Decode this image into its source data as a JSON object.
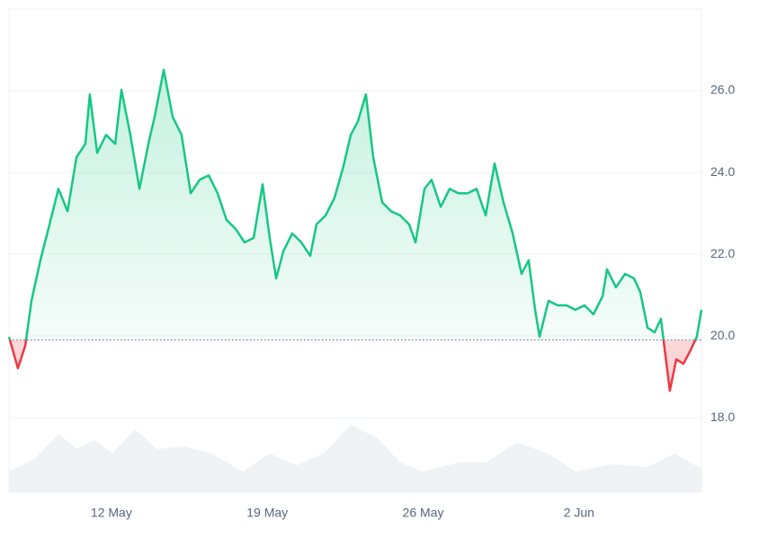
{
  "chart_data": {
    "type": "line",
    "x": [
      7.4,
      7.8,
      8.13,
      8.41,
      8.81,
      9.22,
      9.62,
      10.03,
      10.43,
      10.83,
      11.03,
      11.36,
      11.76,
      12.17,
      12.45,
      12.85,
      13.26,
      13.66,
      13.94,
      14.35,
      14.75,
      15.15,
      15.56,
      15.96,
      16.37,
      16.77,
      17.17,
      17.58,
      17.98,
      18.39,
      18.79,
      19.11,
      19.4,
      19.72,
      20.12,
      20.53,
      20.93,
      21.21,
      21.62,
      22.02,
      22.42,
      22.75,
      23.07,
      23.43,
      23.76,
      24.16,
      24.56,
      24.97,
      25.37,
      25.66,
      26.06,
      26.38,
      26.79,
      27.19,
      27.59,
      28.0,
      28.4,
      28.81,
      29.21,
      29.61,
      30.02,
      30.42,
      30.74,
      31.03,
      31.23,
      31.63,
      32.04,
      32.44,
      32.84,
      33.25,
      33.65,
      34.06,
      34.26,
      34.66,
      35.07,
      35.47,
      35.75,
      36.08,
      36.4,
      36.68,
      36.88,
      37.08,
      37.37,
      37.69,
      38.01,
      38.29,
      38.5
    ],
    "series": [
      {
        "color": "#16c784",
        "negative_color": "#ea3943",
        "values": [
          19.98,
          19.21,
          19.76,
          20.86,
          21.85,
          22.73,
          23.6,
          23.05,
          24.37,
          24.7,
          25.91,
          24.48,
          24.92,
          24.7,
          26.02,
          24.92,
          23.6,
          24.7,
          25.36,
          26.51,
          25.36,
          24.92,
          23.49,
          23.82,
          23.93,
          23.49,
          22.84,
          22.62,
          22.29,
          22.4,
          23.71,
          22.4,
          21.41,
          22.07,
          22.51,
          22.29,
          21.96,
          22.73,
          22.95,
          23.38,
          24.15,
          24.92,
          25.25,
          25.91,
          24.37,
          23.27,
          23.05,
          22.95,
          22.73,
          22.29,
          23.6,
          23.82,
          23.16,
          23.6,
          23.49,
          23.49,
          23.6,
          22.95,
          24.22,
          23.27,
          22.51,
          21.52,
          21.85,
          20.64,
          19.98,
          20.86,
          20.75,
          20.75,
          20.64,
          20.75,
          20.53,
          20.97,
          21.63,
          21.19,
          21.52,
          21.41,
          21.08,
          20.2,
          20.09,
          20.42,
          19.54,
          18.66,
          19.43,
          19.32,
          19.65,
          19.98,
          20.64
        ]
      }
    ],
    "volume": {
      "color": "#eff2f5",
      "axis": "y2",
      "x": [
        7.4,
        8.61,
        9.62,
        10.43,
        11.24,
        12.04,
        13.05,
        14.06,
        15.28,
        16.49,
        17.9,
        19.11,
        20.32,
        21.54,
        22.75,
        23.96,
        24.97,
        25.98,
        27.59,
        28.81,
        30.22,
        31.63,
        32.84,
        34.46,
        36.08,
        37.29,
        38.5
      ],
      "values": [
        23,
        38,
        65,
        48,
        58,
        43,
        70,
        48,
        51,
        43,
        23,
        43,
        30,
        43,
        75,
        60,
        33,
        23,
        33,
        33,
        55,
        43,
        23,
        31,
        28,
        43,
        26
      ]
    },
    "baseline": 19.9,
    "xlim": [
      7.4,
      38.5
    ],
    "xticks": [
      {
        "value": 12,
        "label": "12 May"
      },
      {
        "value": 19,
        "label": "19 May"
      },
      {
        "value": 26,
        "label": "26 May"
      },
      {
        "value": 33,
        "label": "2 Jun"
      }
    ],
    "ylim": [
      16.18,
      28
    ],
    "yticks": [
      {
        "value": 18,
        "label": "18.0"
      },
      {
        "value": 20,
        "label": "20.0"
      },
      {
        "value": 22,
        "label": "22.0"
      },
      {
        "value": 24,
        "label": "24.0"
      },
      {
        "value": 26,
        "label": "26.0"
      }
    ],
    "y2lim": [
      0,
      90
    ],
    "grid": true
  }
}
